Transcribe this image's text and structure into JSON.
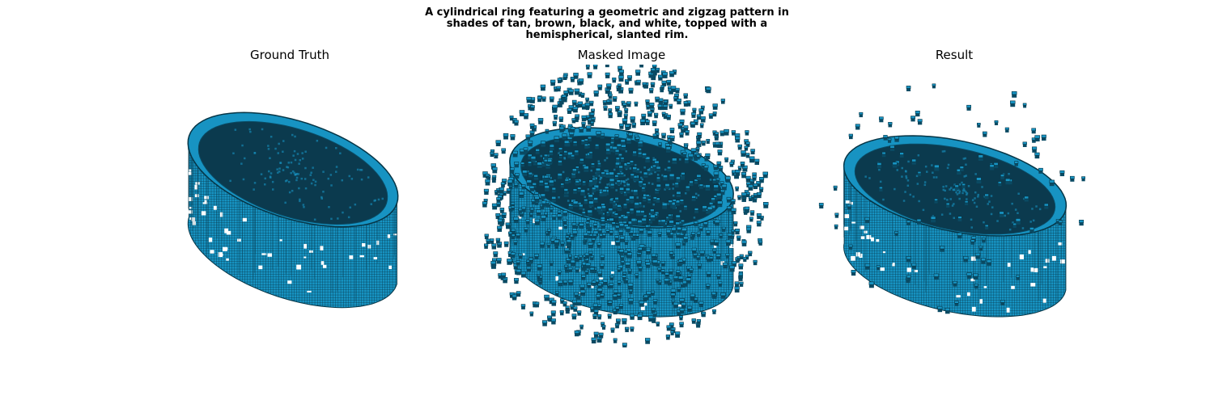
{
  "figure": {
    "title": "A cylindrical ring featuring a geometric and zigzag pattern in\nshades of tan, brown, black, and white, topped with a\nhemispherical, slanted rim."
  },
  "panels": [
    {
      "title": "Ground Truth",
      "noise": "none"
    },
    {
      "title": "Masked Image",
      "noise": "heavy"
    },
    {
      "title": "Result",
      "noise": "light"
    }
  ],
  "colors": {
    "voxel_face": "#1793c2",
    "voxel_dark": "#0a4a63",
    "voxel_edge": "#063546",
    "voxel_top": "#0b3a4e",
    "background": "#ffffff"
  }
}
